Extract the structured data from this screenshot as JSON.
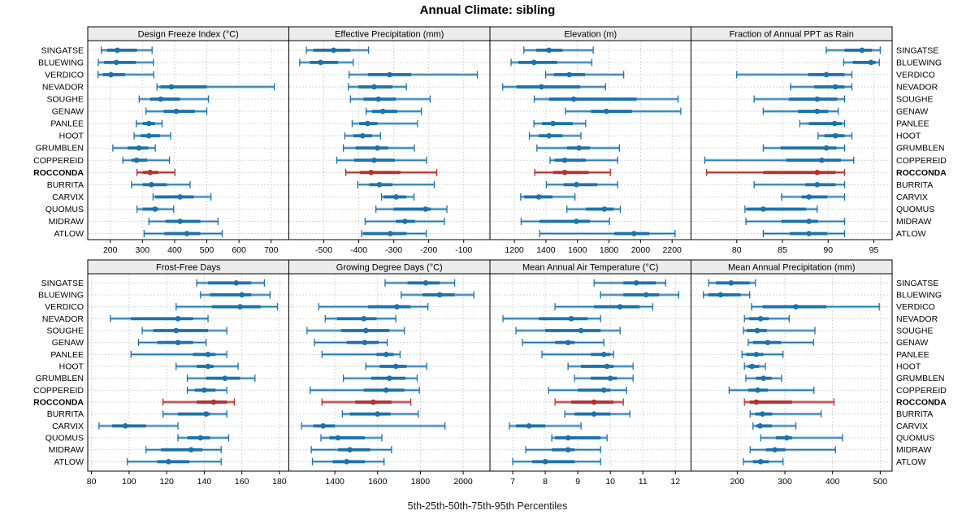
{
  "title": "Annual Climate: sibling",
  "caption": "5th-25th-50th-75th-95th Percentiles",
  "colors": {
    "blue": "#1c72ad",
    "blue_light": "#a7cde4",
    "red": "#b5312b",
    "red_light": "#dfa09e",
    "grid": "#c9c9c9",
    "strip_bg": "#ececec",
    "panel_border": "#000000",
    "text": "#000000"
  },
  "chart_data": {
    "type": "trellis-percentile-dotplot",
    "percentiles": [
      5,
      25,
      50,
      75,
      95
    ],
    "grid": "dotted",
    "legend_position": "none",
    "highlight_site": "ROCCONDA",
    "sites": [
      "SINGATSE",
      "BLUEWING",
      "VERDICO",
      "NEVADOR",
      "SOUGHE",
      "GENAW",
      "PANLEE",
      "HOOT",
      "GRUMBLEN",
      "COPPEREID",
      "ROCCONDA",
      "BURRITA",
      "CARVIX",
      "QUOMUS",
      "MIDRAW",
      "ATLOW"
    ],
    "panels": [
      {
        "title": "Design Freeze Index (°C)",
        "ticks": [
          200,
          300,
          400,
          500,
          600,
          700
        ],
        "xlim": [
          130,
          755
        ],
        "values": [
          [
            172,
            190,
            222,
            283,
            330
          ],
          [
            163,
            181,
            219,
            280,
            334
          ],
          [
            162,
            177,
            202,
            246,
            335
          ],
          [
            345,
            356,
            390,
            500,
            710
          ],
          [
            290,
            324,
            357,
            417,
            505
          ],
          [
            311,
            366,
            405,
            463,
            500
          ],
          [
            281,
            301,
            320,
            339,
            361
          ],
          [
            274,
            295,
            320,
            354,
            388
          ],
          [
            208,
            254,
            289,
            318,
            340
          ],
          [
            239,
            266,
            282,
            315,
            384
          ],
          [
            283,
            301,
            324,
            349,
            401
          ],
          [
            266,
            301,
            328,
            376,
            448
          ],
          [
            333,
            340,
            417,
            459,
            513
          ],
          [
            283,
            301,
            339,
            349,
            397
          ],
          [
            320,
            372,
            417,
            480,
            535
          ],
          [
            305,
            368,
            438,
            480,
            548
          ]
        ]
      },
      {
        "title": "Effective Precipitation (mm)",
        "ticks": [
          -500,
          -400,
          -300,
          -200,
          -100
        ],
        "xlim": [
          -600,
          -25
        ],
        "values": [
          [
            -550,
            -530,
            -472,
            -424,
            -372
          ],
          [
            -569,
            -540,
            -509,
            -459,
            -416
          ],
          [
            -428,
            -374,
            -312,
            -250,
            -61
          ],
          [
            -430,
            -401,
            -356,
            -304,
            -264
          ],
          [
            -424,
            -387,
            -344,
            -294,
            -196
          ],
          [
            -379,
            -362,
            -331,
            -290,
            -221
          ],
          [
            -419,
            -399,
            -375,
            -347,
            -232
          ],
          [
            -440,
            -416,
            -389,
            -362,
            -338
          ],
          [
            -444,
            -409,
            -347,
            -316,
            -241
          ],
          [
            -463,
            -413,
            -356,
            -297,
            -206
          ],
          [
            -437,
            -397,
            -365,
            -281,
            -177
          ],
          [
            -403,
            -370,
            -341,
            -304,
            -184
          ],
          [
            -335,
            -329,
            -293,
            -264,
            -242
          ],
          [
            -351,
            -300,
            -209,
            -194,
            -148
          ],
          [
            -382,
            -294,
            -268,
            -239,
            -155
          ],
          [
            -392,
            -387,
            -310,
            -264,
            -207
          ]
        ]
      },
      {
        "title": "Elevation (m)",
        "ticks": [
          1200,
          1400,
          1600,
          1800,
          2000,
          2200
        ],
        "xlim": [
          1045,
          2320
        ],
        "values": [
          [
            1260,
            1338,
            1419,
            1505,
            1700
          ],
          [
            1179,
            1226,
            1324,
            1471,
            1691
          ],
          [
            1398,
            1450,
            1548,
            1648,
            1893
          ],
          [
            1126,
            1214,
            1372,
            1617,
            1778
          ],
          [
            1326,
            1419,
            1576,
            1976,
            2238
          ],
          [
            1524,
            1686,
            1783,
            1945,
            2255
          ],
          [
            1324,
            1376,
            1445,
            1571,
            1652
          ],
          [
            1295,
            1355,
            1419,
            1505,
            1622
          ],
          [
            1343,
            1533,
            1610,
            1679,
            1866
          ],
          [
            1426,
            1455,
            1519,
            1653,
            1855
          ],
          [
            1329,
            1447,
            1519,
            1671,
            1809
          ],
          [
            1403,
            1512,
            1593,
            1726,
            1855
          ],
          [
            1240,
            1262,
            1355,
            1441,
            1584
          ],
          [
            1533,
            1653,
            1771,
            1829,
            1872
          ],
          [
            1243,
            1360,
            1593,
            1679,
            1803
          ],
          [
            1360,
            1834,
            1959,
            2055,
            2219
          ]
        ]
      },
      {
        "title": "Fraction of Annual PPT as Rain",
        "ticks": [
          80,
          85,
          90,
          95
        ],
        "xlim": [
          75,
          97
        ],
        "values": [
          [
            89.8,
            91.8,
            93.7,
            94.8,
            95.7
          ],
          [
            91.7,
            92.7,
            94.7,
            95.2,
            95.6
          ],
          [
            80.0,
            87.8,
            89.8,
            91.8,
            92.6
          ],
          [
            85.9,
            88.5,
            90.8,
            91.8,
            92.6
          ],
          [
            81.9,
            85.7,
            88.8,
            91.0,
            91.8
          ],
          [
            82.9,
            86.7,
            88.8,
            90.0,
            91.1
          ],
          [
            86.9,
            87.9,
            90.7,
            91.5,
            91.8
          ],
          [
            88.9,
            89.6,
            90.8,
            91.8,
            92.6
          ],
          [
            82.9,
            84.8,
            89.8,
            90.9,
            91.8
          ],
          [
            76.5,
            85.4,
            89.3,
            91.4,
            92.8
          ],
          [
            76.7,
            82.9,
            88.8,
            90.8,
            91.8
          ],
          [
            81.9,
            87.5,
            88.8,
            90.8,
            91.8
          ],
          [
            84.9,
            87.1,
            87.9,
            89.9,
            91.8
          ],
          [
            80.9,
            81.1,
            82.9,
            87.6,
            88.8
          ],
          [
            81.0,
            84.9,
            87.9,
            88.9,
            91.8
          ],
          [
            82.9,
            85.8,
            87.9,
            89.9,
            91.8
          ]
        ]
      },
      {
        "title": "Frost-Free Days",
        "ticks": [
          80,
          100,
          120,
          140,
          160,
          180
        ],
        "xlim": [
          78,
          185
        ],
        "values": [
          [
            136,
            142,
            157,
            165,
            172
          ],
          [
            138,
            143,
            160,
            165,
            175
          ],
          [
            125,
            144,
            159,
            170,
            179
          ],
          [
            90,
            101,
            126,
            134,
            142
          ],
          [
            107,
            113,
            125,
            142,
            152
          ],
          [
            105,
            115,
            126,
            134,
            141
          ],
          [
            101,
            134,
            142,
            146,
            152
          ],
          [
            125,
            136,
            142,
            145,
            158
          ],
          [
            131,
            141,
            151,
            159,
            167
          ],
          [
            131,
            135,
            140,
            146,
            152
          ],
          [
            118,
            136,
            145,
            152,
            156
          ],
          [
            118,
            126,
            141,
            143,
            152
          ],
          [
            84,
            91,
            98,
            109,
            126
          ],
          [
            126,
            131,
            138,
            143,
            153
          ],
          [
            109,
            117,
            133,
            139,
            149
          ],
          [
            99,
            115,
            121,
            132,
            149
          ]
        ]
      },
      {
        "title": "Growing Degree Days (°C)",
        "ticks": [
          1400,
          1600,
          1800,
          2000
        ],
        "xlim": [
          1185,
          2125
        ],
        "values": [
          [
            1635,
            1740,
            1825,
            1890,
            1960
          ],
          [
            1710,
            1810,
            1890,
            1960,
            2050
          ],
          [
            1325,
            1555,
            1690,
            1755,
            1835
          ],
          [
            1355,
            1410,
            1535,
            1595,
            1685
          ],
          [
            1270,
            1430,
            1545,
            1655,
            1725
          ],
          [
            1305,
            1455,
            1540,
            1605,
            1645
          ],
          [
            1340,
            1595,
            1640,
            1675,
            1705
          ],
          [
            1545,
            1610,
            1685,
            1735,
            1830
          ],
          [
            1440,
            1570,
            1655,
            1730,
            1785
          ],
          [
            1285,
            1535,
            1640,
            1725,
            1795
          ],
          [
            1340,
            1495,
            1580,
            1665,
            1755
          ],
          [
            1435,
            1470,
            1600,
            1660,
            1790
          ],
          [
            1245,
            1300,
            1345,
            1400,
            1915
          ],
          [
            1335,
            1375,
            1415,
            1540,
            1620
          ],
          [
            1290,
            1415,
            1470,
            1565,
            1665
          ],
          [
            1295,
            1390,
            1455,
            1540,
            1630
          ]
        ]
      },
      {
        "title": "Mean Annual Air Temperature (°C)",
        "ticks": [
          7,
          8,
          9,
          10,
          11,
          12
        ],
        "xlim": [
          6.3,
          12.48
        ],
        "values": [
          [
            9.5,
            10.4,
            10.8,
            11.4,
            11.7
          ],
          [
            9.7,
            10.4,
            11.1,
            11.5,
            12.1
          ],
          [
            8.3,
            9.5,
            10.3,
            10.9,
            11.3
          ],
          [
            6.7,
            7.8,
            8.8,
            9.3,
            9.7
          ],
          [
            7.1,
            8.0,
            9.1,
            9.7,
            10.3
          ],
          [
            7.3,
            8.3,
            8.7,
            8.9,
            9.8
          ],
          [
            7.9,
            9.4,
            9.8,
            10.0,
            10.1
          ],
          [
            8.7,
            9.1,
            9.9,
            10.1,
            10.7
          ],
          [
            8.9,
            9.4,
            10.0,
            10.2,
            10.7
          ],
          [
            8.1,
            9.0,
            9.8,
            10.0,
            10.5
          ],
          [
            8.3,
            8.8,
            9.5,
            10.1,
            10.4
          ],
          [
            8.6,
            8.9,
            9.5,
            10.0,
            10.6
          ],
          [
            6.9,
            7.1,
            7.5,
            8.0,
            9.1
          ],
          [
            8.2,
            8.3,
            8.7,
            9.7,
            9.9
          ],
          [
            7.4,
            8.2,
            8.7,
            8.9,
            9.7
          ],
          [
            7.0,
            7.6,
            8.0,
            8.9,
            9.7
          ]
        ]
      },
      {
        "title": "Mean Annual Precipitation (mm)",
        "ticks": [
          200,
          300,
          400,
          500
        ],
        "xlim": [
          103,
          525
        ],
        "values": [
          [
            140,
            155,
            187,
            226,
            238
          ],
          [
            129,
            139,
            165,
            207,
            226
          ],
          [
            230,
            253,
            323,
            387,
            498
          ],
          [
            215,
            225,
            249,
            266,
            309
          ],
          [
            213,
            220,
            242,
            262,
            363
          ],
          [
            223,
            233,
            264,
            292,
            360
          ],
          [
            210,
            219,
            240,
            255,
            296
          ],
          [
            215,
            223,
            231,
            246,
            259
          ],
          [
            218,
            239,
            255,
            272,
            293
          ],
          [
            183,
            223,
            243,
            264,
            361
          ],
          [
            215,
            226,
            240,
            315,
            403
          ],
          [
            227,
            238,
            253,
            273,
            376
          ],
          [
            233,
            240,
            248,
            273,
            323
          ],
          [
            249,
            281,
            304,
            315,
            421
          ],
          [
            227,
            260,
            279,
            301,
            406
          ],
          [
            213,
            233,
            249,
            266,
            296
          ]
        ]
      }
    ]
  }
}
